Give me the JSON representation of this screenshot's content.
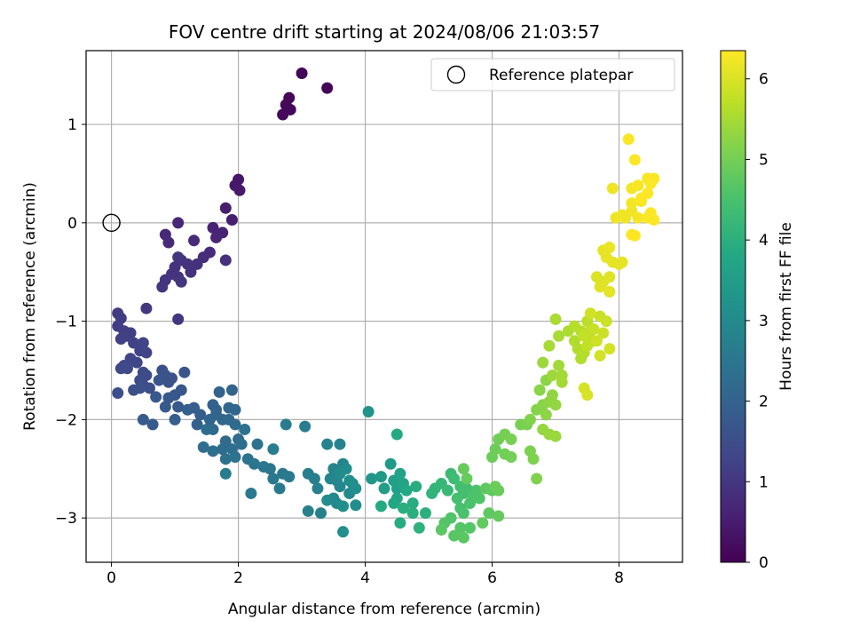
{
  "chart_data": {
    "type": "scatter",
    "title": "FOV centre drift starting at 2024/08/06 21:03:57",
    "xlabel": "Angular distance from reference (arcmin)",
    "ylabel": "Rotation from reference (arcmin)",
    "xlim": [
      -0.4,
      9.0
    ],
    "ylim": [
      -3.45,
      1.75
    ],
    "xticks": [
      0,
      2,
      4,
      6,
      8
    ],
    "yticks": [
      -3,
      -2,
      -1,
      0,
      1
    ],
    "xtick_labels": [
      "0",
      "2",
      "4",
      "6",
      "8"
    ],
    "ytick_labels": [
      "−3",
      "−2",
      "−1",
      "0",
      "1"
    ],
    "grid": true,
    "legend": {
      "placement": "top-right",
      "entries": [
        "Reference platepar"
      ]
    },
    "reference_point": {
      "x": 0,
      "y": 0
    },
    "colorbar": {
      "label": "Hours from first FF file",
      "range": [
        0,
        6.35
      ],
      "ticks": [
        0,
        1,
        2,
        3,
        4,
        5,
        6
      ],
      "tick_labels": [
        "0",
        "1",
        "2",
        "3",
        "4",
        "5",
        "6"
      ],
      "colormap": "viridis"
    },
    "points": [
      [
        3.0,
        1.52,
        0.05
      ],
      [
        3.4,
        1.37,
        0.07
      ],
      [
        2.8,
        1.27,
        0.1
      ],
      [
        2.75,
        1.2,
        0.12
      ],
      [
        2.82,
        1.15,
        0.13
      ],
      [
        2.7,
        1.1,
        0.15
      ],
      [
        2.0,
        0.44,
        0.4
      ],
      [
        1.95,
        0.38,
        0.42
      ],
      [
        2.02,
        0.33,
        0.45
      ],
      [
        1.8,
        0.15,
        0.5
      ],
      [
        1.9,
        0.03,
        0.55
      ],
      [
        1.6,
        -0.05,
        0.6
      ],
      [
        1.75,
        -0.1,
        0.62
      ],
      [
        1.65,
        -0.15,
        0.65
      ],
      [
        1.05,
        0.0,
        0.7
      ],
      [
        0.85,
        -0.12,
        0.72
      ],
      [
        0.9,
        -0.2,
        0.75
      ],
      [
        1.3,
        -0.18,
        0.78
      ],
      [
        1.55,
        -0.3,
        0.8
      ],
      [
        1.45,
        -0.35,
        0.82
      ],
      [
        1.8,
        -0.38,
        0.85
      ],
      [
        1.35,
        -0.42,
        0.87
      ],
      [
        1.25,
        -0.5,
        0.9
      ],
      [
        1.1,
        -0.38,
        0.92
      ],
      [
        1.0,
        -0.45,
        0.93
      ],
      [
        1.2,
        -0.42,
        0.94
      ],
      [
        1.05,
        -0.55,
        0.95
      ],
      [
        0.95,
        -0.52,
        0.96
      ],
      [
        0.85,
        -0.58,
        0.97
      ],
      [
        0.8,
        -0.65,
        0.98
      ],
      [
        1.1,
        -0.6,
        0.99
      ],
      [
        1.05,
        -0.35,
        1.0
      ],
      [
        1.05,
        -0.98,
        1.02
      ],
      [
        0.55,
        -0.87,
        1.05
      ],
      [
        0.1,
        -0.92,
        1.1
      ],
      [
        0.15,
        -0.97,
        1.12
      ],
      [
        0.1,
        -1.05,
        1.14
      ],
      [
        0.2,
        -1.1,
        1.16
      ],
      [
        0.3,
        -1.12,
        1.18
      ],
      [
        0.25,
        -1.15,
        1.2
      ],
      [
        0.15,
        -1.18,
        1.22
      ],
      [
        0.35,
        -1.22,
        1.24
      ],
      [
        0.45,
        -1.3,
        1.26
      ],
      [
        0.55,
        -1.32,
        1.28
      ],
      [
        0.5,
        -1.22,
        1.3
      ],
      [
        0.3,
        -1.38,
        1.32
      ],
      [
        0.4,
        -1.42,
        1.34
      ],
      [
        0.2,
        -1.45,
        1.36
      ],
      [
        0.15,
        -1.48,
        1.38
      ],
      [
        0.25,
        -1.48,
        1.4
      ],
      [
        0.5,
        -1.52,
        1.42
      ],
      [
        0.55,
        -1.55,
        1.44
      ],
      [
        0.45,
        -1.6,
        1.46
      ],
      [
        0.5,
        -1.65,
        1.48
      ],
      [
        0.6,
        -1.68,
        1.5
      ],
      [
        0.35,
        -1.7,
        1.52
      ],
      [
        0.1,
        -1.73,
        1.54
      ],
      [
        0.45,
        -1.68,
        1.56
      ],
      [
        0.8,
        -1.5,
        1.58
      ],
      [
        0.85,
        -1.55,
        1.6
      ],
      [
        0.95,
        -1.58,
        1.62
      ],
      [
        0.9,
        -1.62,
        1.64
      ],
      [
        0.75,
        -1.6,
        1.66
      ],
      [
        1.15,
        -1.52,
        1.68
      ],
      [
        1.1,
        -1.7,
        1.7
      ],
      [
        1.0,
        -1.75,
        1.72
      ],
      [
        0.9,
        -1.78,
        1.74
      ],
      [
        0.7,
        -1.77,
        1.76
      ],
      [
        0.85,
        -1.87,
        1.78
      ],
      [
        1.05,
        -1.87,
        1.8
      ],
      [
        0.5,
        -2.0,
        1.82
      ],
      [
        0.65,
        -2.05,
        1.84
      ],
      [
        1.3,
        -1.88,
        1.86
      ],
      [
        1.4,
        -1.95,
        1.88
      ],
      [
        1.2,
        -1.9,
        1.9
      ],
      [
        1.35,
        -2.05,
        1.92
      ],
      [
        1.0,
        -2.0,
        1.94
      ],
      [
        1.6,
        -1.85,
        1.96
      ],
      [
        1.65,
        -1.9,
        1.98
      ],
      [
        1.7,
        -1.72,
        2.0
      ],
      [
        1.9,
        -1.7,
        2.02
      ],
      [
        1.65,
        -1.95,
        2.04
      ],
      [
        1.55,
        -2.0,
        2.06
      ],
      [
        1.75,
        -2.0,
        2.08
      ],
      [
        1.85,
        -1.88,
        2.1
      ],
      [
        1.95,
        -1.9,
        2.12
      ],
      [
        1.85,
        -2.0,
        2.14
      ],
      [
        1.6,
        -2.1,
        2.16
      ],
      [
        1.95,
        -2.05,
        2.18
      ],
      [
        2.0,
        -2.2,
        2.2
      ],
      [
        1.8,
        -2.22,
        2.22
      ],
      [
        1.75,
        -2.3,
        2.24
      ],
      [
        1.5,
        -2.1,
        2.26
      ],
      [
        1.45,
        -2.28,
        2.28
      ],
      [
        1.6,
        -2.32,
        2.3
      ],
      [
        1.9,
        -2.3,
        2.32
      ],
      [
        2.05,
        -2.25,
        2.34
      ],
      [
        1.8,
        -2.4,
        2.36
      ],
      [
        1.95,
        -2.38,
        2.38
      ],
      [
        2.1,
        -2.1,
        2.4
      ],
      [
        2.3,
        -2.25,
        2.42
      ],
      [
        2.15,
        -2.4,
        2.44
      ],
      [
        2.25,
        -2.45,
        2.46
      ],
      [
        2.4,
        -2.48,
        2.48
      ],
      [
        2.5,
        -2.5,
        2.5
      ],
      [
        2.55,
        -2.6,
        2.52
      ],
      [
        2.7,
        -2.55,
        2.54
      ],
      [
        2.8,
        -2.58,
        2.56
      ],
      [
        2.65,
        -2.7,
        2.58
      ],
      [
        2.2,
        -2.75,
        2.6
      ],
      [
        1.8,
        -2.55,
        2.62
      ],
      [
        2.75,
        -2.05,
        2.64
      ],
      [
        2.55,
        -2.3,
        2.66
      ],
      [
        3.05,
        -2.07,
        2.68
      ],
      [
        3.1,
        -2.55,
        2.7
      ],
      [
        3.2,
        -2.6,
        2.72
      ],
      [
        3.25,
        -2.7,
        2.74
      ],
      [
        3.1,
        -2.93,
        2.76
      ],
      [
        3.3,
        -2.95,
        2.78
      ],
      [
        3.4,
        -2.25,
        2.8
      ],
      [
        3.6,
        -2.25,
        2.82
      ],
      [
        3.5,
        -2.5,
        2.84
      ],
      [
        3.65,
        -2.45,
        2.86
      ],
      [
        3.45,
        -2.6,
        2.88
      ],
      [
        3.55,
        -2.62,
        2.9
      ],
      [
        3.6,
        -2.68,
        2.92
      ],
      [
        3.5,
        -2.8,
        2.94
      ],
      [
        3.55,
        -2.85,
        2.96
      ],
      [
        3.75,
        -2.75,
        2.98
      ],
      [
        3.8,
        -2.65,
        3.0
      ],
      [
        3.6,
        -2.55,
        3.02
      ],
      [
        3.7,
        -2.5,
        3.04
      ],
      [
        3.4,
        -2.82,
        3.06
      ],
      [
        3.85,
        -2.87,
        3.08
      ],
      [
        3.65,
        -2.88,
        3.1
      ],
      [
        3.65,
        -3.14,
        3.12
      ],
      [
        3.75,
        -2.62,
        3.14
      ],
      [
        3.85,
        -2.7,
        3.16
      ],
      [
        4.05,
        -1.92,
        3.2
      ],
      [
        4.1,
        -2.6,
        3.3
      ],
      [
        4.25,
        -2.58,
        3.4
      ],
      [
        4.4,
        -2.45,
        3.45
      ],
      [
        4.3,
        -2.7,
        3.5
      ],
      [
        4.45,
        -2.62,
        3.55
      ],
      [
        4.5,
        -2.7,
        3.6
      ],
      [
        4.55,
        -2.55,
        3.65
      ],
      [
        4.6,
        -2.65,
        3.7
      ],
      [
        4.5,
        -2.8,
        3.75
      ],
      [
        4.45,
        -2.85,
        3.8
      ],
      [
        4.65,
        -2.72,
        3.82
      ],
      [
        4.5,
        -2.15,
        3.85
      ],
      [
        4.25,
        -2.88,
        3.87
      ],
      [
        4.55,
        -3.05,
        3.9
      ],
      [
        4.75,
        -2.85,
        3.92
      ],
      [
        4.8,
        -2.68,
        3.94
      ],
      [
        4.6,
        -2.9,
        3.96
      ],
      [
        4.75,
        -2.95,
        3.98
      ],
      [
        4.95,
        -2.95,
        4.0
      ],
      [
        4.85,
        -3.1,
        4.05
      ],
      [
        5.05,
        -2.75,
        4.1
      ],
      [
        5.1,
        -2.7,
        4.15
      ],
      [
        5.2,
        -2.65,
        4.2
      ],
      [
        5.3,
        -2.72,
        4.25
      ],
      [
        5.35,
        -2.55,
        4.3
      ],
      [
        5.4,
        -2.6,
        4.35
      ],
      [
        5.5,
        -2.68,
        4.4
      ],
      [
        5.55,
        -2.75,
        4.42
      ],
      [
        5.6,
        -2.7,
        4.44
      ],
      [
        5.45,
        -2.8,
        4.46
      ],
      [
        5.5,
        -2.9,
        4.48
      ],
      [
        5.55,
        -2.95,
        4.5
      ],
      [
        5.65,
        -2.85,
        4.52
      ],
      [
        5.7,
        -2.78,
        4.54
      ],
      [
        5.75,
        -2.72,
        4.56
      ],
      [
        5.8,
        -2.8,
        4.58
      ],
      [
        5.35,
        -3.0,
        4.6
      ],
      [
        5.25,
        -3.05,
        4.62
      ],
      [
        5.5,
        -3.1,
        4.64
      ],
      [
        5.65,
        -3.1,
        4.66
      ],
      [
        5.4,
        -3.18,
        4.68
      ],
      [
        5.2,
        -3.12,
        4.7
      ],
      [
        5.55,
        -3.2,
        4.72
      ],
      [
        5.9,
        -2.7,
        4.74
      ],
      [
        6.0,
        -2.72,
        4.76
      ],
      [
        5.95,
        -2.95,
        4.78
      ],
      [
        5.85,
        -3.05,
        4.8
      ],
      [
        6.1,
        -2.98,
        4.82
      ],
      [
        5.55,
        -2.5,
        4.84
      ],
      [
        5.6,
        -2.6,
        4.86
      ],
      [
        6.1,
        -2.72,
        4.88
      ],
      [
        6.05,
        -2.68,
        4.9
      ],
      [
        6.0,
        -2.38,
        4.92
      ],
      [
        6.05,
        -2.3,
        4.94
      ],
      [
        6.1,
        -2.2,
        4.96
      ],
      [
        6.2,
        -2.35,
        4.98
      ],
      [
        6.3,
        -2.38,
        5.0
      ],
      [
        6.2,
        -2.15,
        5.02
      ],
      [
        6.3,
        -2.2,
        5.04
      ],
      [
        6.45,
        -2.05,
        5.06
      ],
      [
        6.55,
        -2.05,
        5.08
      ],
      [
        6.6,
        -2.32,
        5.1
      ],
      [
        6.65,
        -2.4,
        5.12
      ],
      [
        6.7,
        -2.6,
        5.14
      ],
      [
        6.6,
        -2.0,
        5.16
      ],
      [
        6.7,
        -1.9,
        5.18
      ],
      [
        6.8,
        -1.85,
        5.2
      ],
      [
        6.75,
        -1.7,
        5.22
      ],
      [
        6.85,
        -1.6,
        5.24
      ],
      [
        6.85,
        -1.95,
        5.26
      ],
      [
        6.9,
        -1.82,
        5.28
      ],
      [
        6.95,
        -1.75,
        5.3
      ],
      [
        7.0,
        -1.85,
        5.32
      ],
      [
        6.8,
        -2.1,
        5.34
      ],
      [
        6.9,
        -2.15,
        5.36
      ],
      [
        7.0,
        -2.17,
        5.38
      ],
      [
        6.8,
        -1.42,
        5.4
      ],
      [
        6.95,
        -1.55,
        5.42
      ],
      [
        7.05,
        -1.45,
        5.44
      ],
      [
        7.1,
        -1.55,
        5.46
      ],
      [
        7.1,
        -1.62,
        5.48
      ],
      [
        6.9,
        -1.25,
        5.5
      ],
      [
        7.05,
        -1.15,
        5.52
      ],
      [
        7.0,
        -0.98,
        5.54
      ],
      [
        7.2,
        -1.1,
        5.56
      ],
      [
        7.3,
        -1.2,
        5.58
      ],
      [
        7.35,
        -1.28,
        5.6
      ],
      [
        7.4,
        -1.38,
        5.62
      ],
      [
        7.45,
        -1.32,
        5.64
      ],
      [
        7.3,
        -1.05,
        5.66
      ],
      [
        7.4,
        -1.1,
        5.68
      ],
      [
        7.5,
        -1.0,
        5.7
      ],
      [
        7.55,
        -1.1,
        5.72
      ],
      [
        7.6,
        -1.2,
        5.74
      ],
      [
        7.5,
        -1.25,
        5.76
      ],
      [
        7.45,
        -1.15,
        5.78
      ],
      [
        7.6,
        -1.08,
        5.8
      ],
      [
        7.7,
        -0.95,
        5.82
      ],
      [
        7.8,
        -1.0,
        5.84
      ],
      [
        7.75,
        -1.12,
        5.86
      ],
      [
        7.65,
        -1.2,
        5.88
      ],
      [
        7.55,
        -0.92,
        5.9
      ],
      [
        7.7,
        -1.35,
        5.92
      ],
      [
        7.85,
        -1.28,
        5.94
      ],
      [
        7.45,
        -1.68,
        5.96
      ],
      [
        7.5,
        -1.75,
        5.98
      ],
      [
        7.65,
        -0.55,
        6.0
      ],
      [
        7.75,
        -0.6,
        6.02
      ],
      [
        7.85,
        -0.55,
        6.04
      ],
      [
        7.7,
        -0.65,
        6.06
      ],
      [
        7.85,
        -0.7,
        6.08
      ],
      [
        7.9,
        -0.4,
        6.1
      ],
      [
        8.05,
        -0.4,
        6.12
      ],
      [
        7.75,
        -0.28,
        6.14
      ],
      [
        7.85,
        -0.25,
        6.16
      ],
      [
        7.95,
        0.05,
        6.18
      ],
      [
        8.05,
        0.08,
        6.2
      ],
      [
        8.2,
        0.12,
        6.22
      ],
      [
        8.2,
        0.2,
        6.24
      ],
      [
        8.3,
        0.05,
        6.26
      ],
      [
        8.35,
        0.22,
        6.28
      ],
      [
        8.45,
        0.45,
        6.3
      ],
      [
        8.55,
        0.45,
        6.31
      ],
      [
        8.5,
        0.4,
        6.32
      ],
      [
        8.45,
        0.3,
        6.33
      ],
      [
        8.5,
        0.1,
        6.34
      ],
      [
        8.55,
        0.03,
        6.34
      ],
      [
        8.2,
        -0.12,
        6.35
      ],
      [
        8.25,
        -0.13,
        6.35
      ],
      [
        7.9,
        0.35,
        6.2
      ],
      [
        8.2,
        0.35,
        6.25
      ],
      [
        8.3,
        0.38,
        6.3
      ],
      [
        8.45,
        0.05,
        6.32
      ],
      [
        8.1,
        0.05,
        6.22
      ],
      [
        8.15,
        0.85,
        6.3
      ],
      [
        8.25,
        0.64,
        6.32
      ],
      [
        8.35,
        0.25,
        6.35
      ],
      [
        8.0,
        -0.42,
        6.1
      ],
      [
        7.8,
        -0.35,
        6.12
      ]
    ]
  }
}
